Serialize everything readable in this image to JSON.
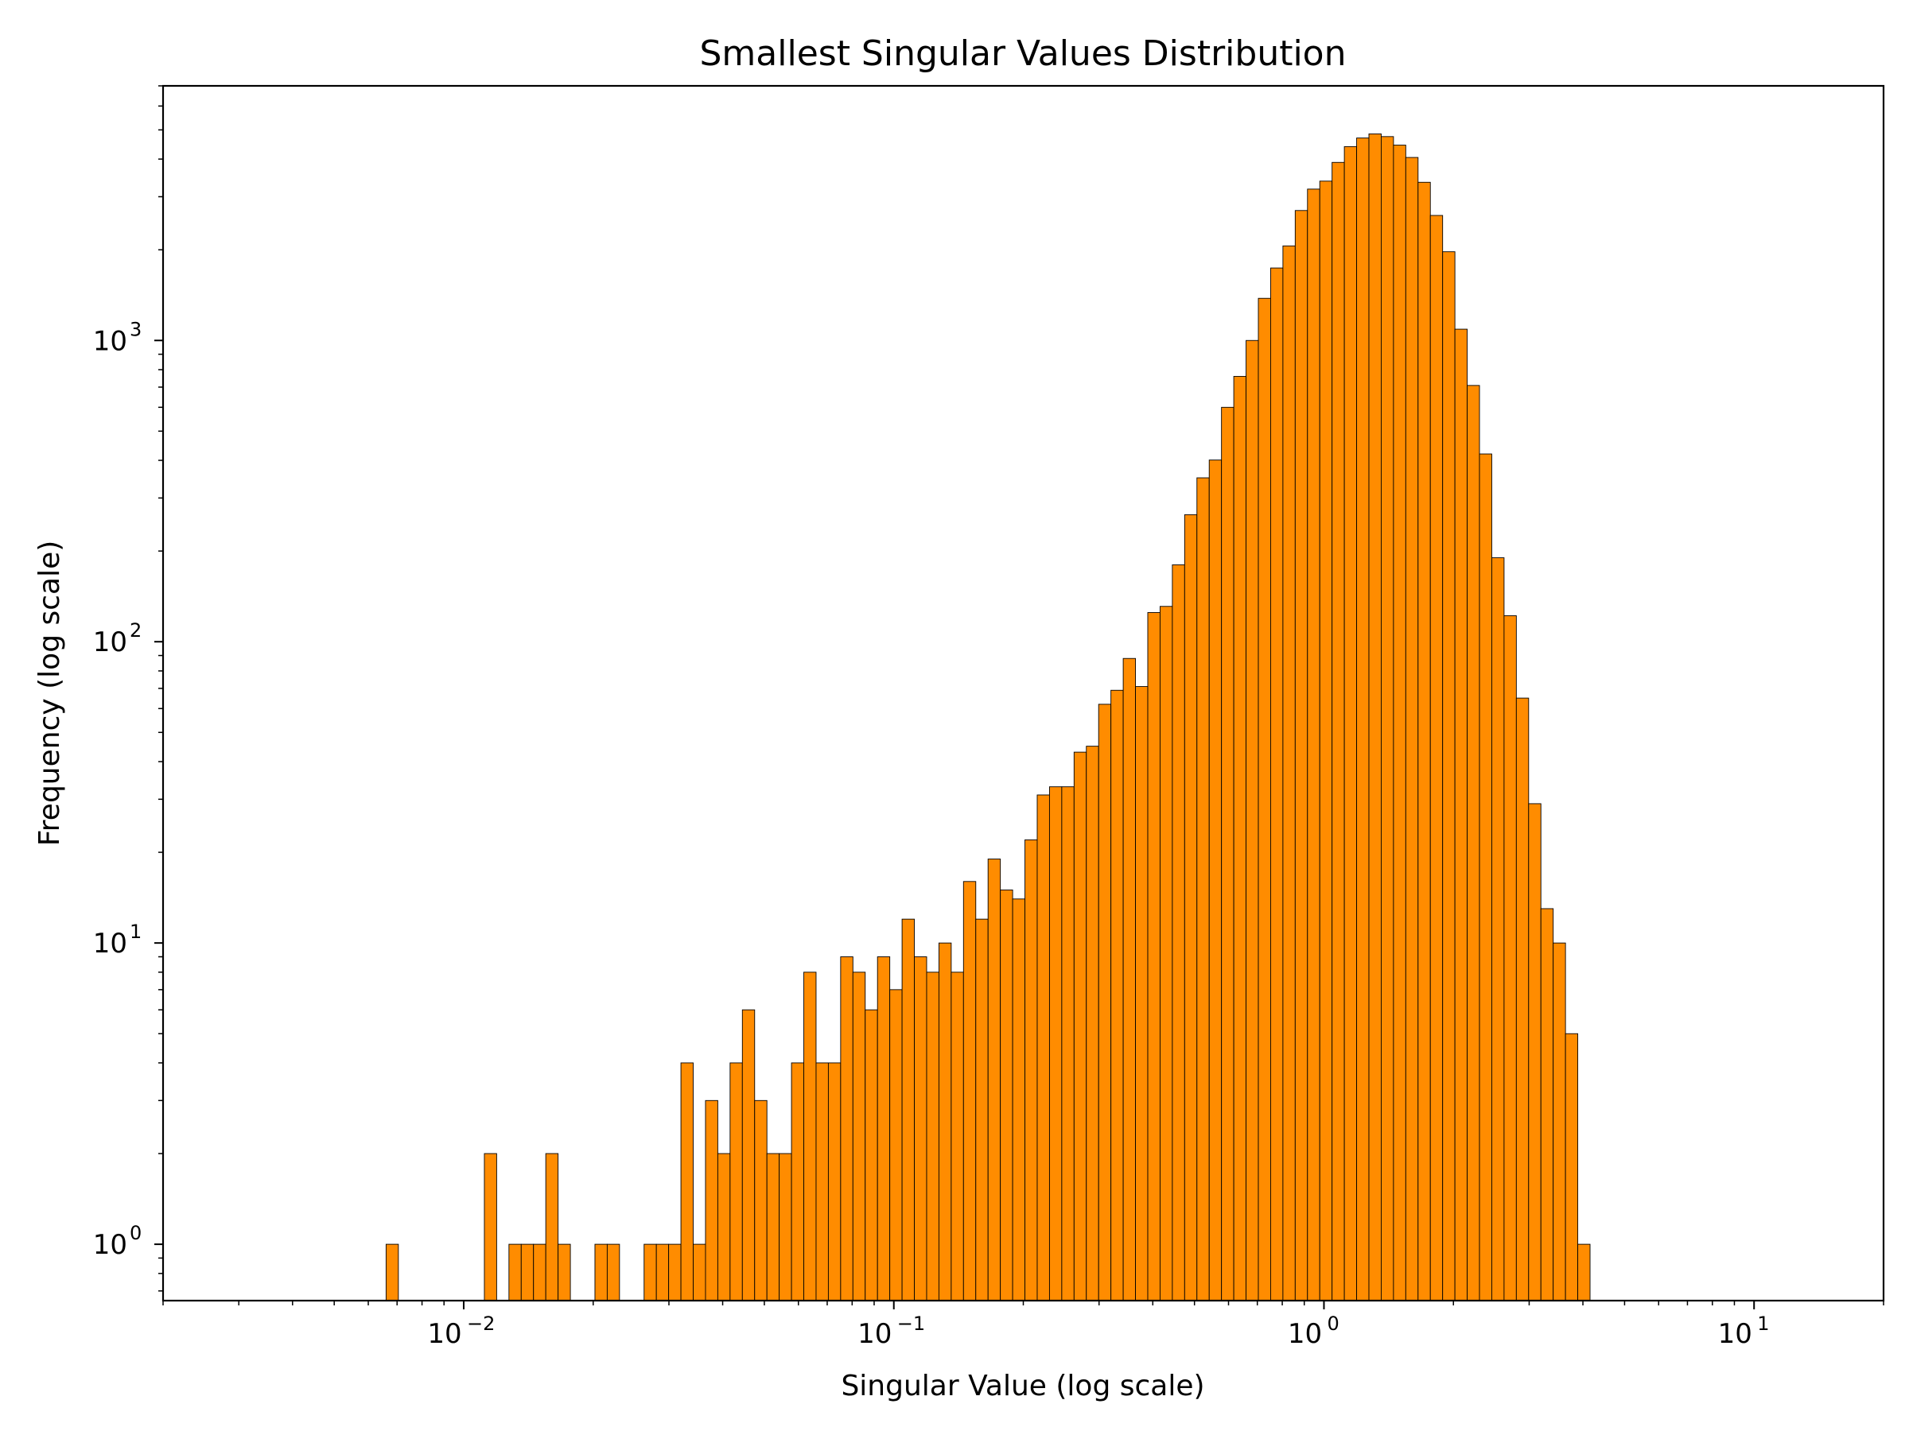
{
  "chart_data": {
    "type": "bar",
    "title": "Smallest Singular Values Distribution",
    "xlabel": "Singular Value (log scale)",
    "ylabel": "Frequency (log scale)",
    "x_scale": "log",
    "y_scale": "log",
    "xlim": [
      0.002,
      20
    ],
    "ylim": [
      0.65,
      7000
    ],
    "x_ticks": [
      {
        "base": "10",
        "exp": "−2",
        "value": 0.01
      },
      {
        "base": "10",
        "exp": "−1",
        "value": 0.1
      },
      {
        "base": "10",
        "exp": "0",
        "value": 1
      },
      {
        "base": "10",
        "exp": "1",
        "value": 10
      }
    ],
    "y_ticks": [
      {
        "base": "10",
        "exp": "0",
        "value": 1
      },
      {
        "base": "10",
        "exp": "1",
        "value": 10
      },
      {
        "base": "10",
        "exp": "2",
        "value": 100
      },
      {
        "base": "10",
        "exp": "3",
        "value": 1000
      }
    ],
    "grid": false,
    "bar_color": "#ff8c00",
    "edge_color": "#000000",
    "bin_range": [
      0.0066,
      14.5
    ],
    "bin_count": 117,
    "counts": [
      1,
      0,
      0,
      0,
      0,
      0,
      0,
      0,
      2,
      0,
      1,
      1,
      1,
      2,
      1,
      0,
      0,
      1,
      1,
      0,
      0,
      1,
      1,
      1,
      4,
      1,
      3,
      2,
      4,
      6,
      3,
      2,
      2,
      4,
      8,
      4,
      4,
      9,
      8,
      6,
      9,
      7,
      12,
      9,
      8,
      10,
      8,
      16,
      12,
      19,
      15,
      14,
      22,
      31,
      33,
      33,
      43,
      45,
      62,
      69,
      88,
      71,
      125,
      131,
      180,
      264,
      350,
      401,
      600,
      760,
      1000,
      1380,
      1740,
      2060,
      2700,
      3180,
      3380,
      3900,
      4400,
      4700,
      4850,
      4750,
      4450,
      4050,
      3350,
      2600,
      1970,
      1090,
      709,
      420,
      190,
      122,
      65,
      29,
      13,
      10,
      5,
      1,
      0,
      0,
      0,
      0,
      0,
      0,
      0,
      0,
      0,
      0,
      0,
      0,
      0,
      0,
      0,
      0,
      0,
      0,
      0
    ]
  }
}
